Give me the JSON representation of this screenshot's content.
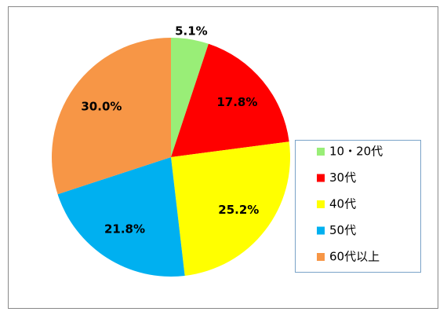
{
  "chart_data": {
    "type": "pie",
    "categories": [
      "10・20代",
      "30代",
      "40代",
      "50代",
      "60代以上"
    ],
    "values": [
      5.1,
      17.8,
      25.2,
      21.8,
      30.0
    ],
    "value_labels": [
      "5.1%",
      "17.8%",
      "25.2%",
      "21.8%",
      "30.0%"
    ],
    "colors": [
      "#99ee77",
      "#ff0000",
      "#ffff00",
      "#00b0f0",
      "#f79646"
    ],
    "legend": "right"
  }
}
